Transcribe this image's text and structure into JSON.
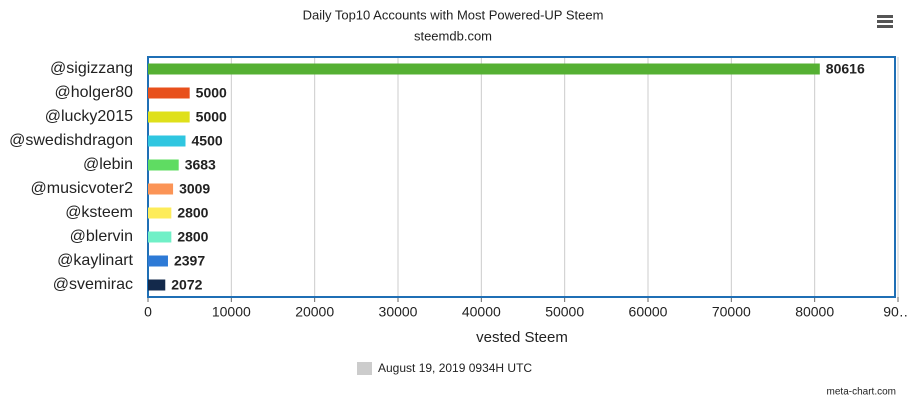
{
  "chart_data": {
    "type": "bar",
    "orientation": "horizontal",
    "title": "Daily Top10 Accounts with Most Powered-UP Steem",
    "subtitle": "steemdb.com",
    "categories": [
      "@sigizzang",
      "@holger80",
      "@lucky2015",
      "@swedishdragon",
      "@lebin",
      "@musicvoter2",
      "@ksteem",
      "@blervin",
      "@kaylinart",
      "@svemirac"
    ],
    "values": [
      80616,
      5000,
      5000,
      4500,
      3683,
      3009,
      2800,
      2800,
      2397,
      2072
    ],
    "colors": [
      "#55b033",
      "#e8501c",
      "#dfe01a",
      "#2fc6e0",
      "#5fdc62",
      "#fb9456",
      "#fdec5a",
      "#70f0c7",
      "#2d7ad6",
      "#13294b"
    ],
    "xlabel": "vested Steem",
    "xlim": [
      0,
      90000
    ],
    "xticks": [
      0,
      10000,
      20000,
      30000,
      40000,
      50000,
      60000,
      70000,
      80000,
      {
        "value": 90000,
        "label": "90…"
      }
    ],
    "grid": true,
    "legend": {
      "name": "August 19, 2019 0934H UTC",
      "color": "#cccccc",
      "position": "bottom"
    },
    "credit": "meta-chart.com"
  }
}
